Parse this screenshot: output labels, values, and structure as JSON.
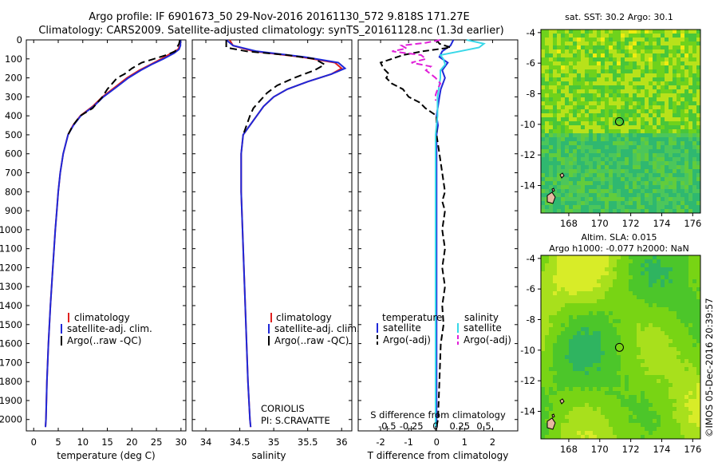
{
  "title_line1": "Argo profile: IF 6901673_50 29-Nov-2016 20161130_572 9.818S 171.27E",
  "title_line2": "Climatology: CARS2009. Satellite-adjusted climatology: synTS_20161128.nc (1.3d earlier)",
  "footer_stamp": "©IMOS 05-Dec-2016 20:39:57",
  "colors": {
    "clim": "#e0201e",
    "sat": "#1f28d8",
    "argo": "#000000",
    "sal_sat": "#38d8e8",
    "sal_argo": "#e020d8"
  },
  "depth_axis": {
    "ticks": [
      0,
      100,
      200,
      300,
      400,
      500,
      600,
      700,
      800,
      900,
      1000,
      1100,
      1200,
      1300,
      1400,
      1500,
      1600,
      1700,
      1800,
      1900,
      2000
    ],
    "ylim": [
      0,
      2060
    ]
  },
  "chart_data": [
    {
      "type": "line",
      "name": "temperature",
      "xlabel": "temperature (deg C)",
      "xlim": [
        -1.5,
        31
      ],
      "xticks": [
        0,
        5,
        10,
        15,
        20,
        25,
        30
      ],
      "legend": [
        "climatology",
        "satellite-adj. clim.",
        "Argo(..raw -QC)"
      ],
      "series": [
        {
          "name": "climatology",
          "depth": [
            0,
            30,
            50,
            70,
            100,
            130,
            160,
            200,
            250,
            300,
            350,
            400,
            450,
            500,
            600,
            700,
            800,
            900,
            1000,
            1200,
            1400,
            1600,
            1800,
            2000,
            2040
          ],
          "values": [
            29.8,
            29.8,
            29.4,
            28.0,
            26.0,
            23.8,
            21.5,
            19.0,
            16.5,
            14.0,
            12.0,
            9.5,
            8.0,
            7.0,
            6.0,
            5.4,
            5.0,
            4.7,
            4.4,
            3.9,
            3.4,
            3.0,
            2.7,
            2.5,
            2.4
          ]
        },
        {
          "name": "satellite-adj. clim.",
          "depth": [
            0,
            30,
            50,
            70,
            100,
            130,
            160,
            200,
            250,
            300,
            350,
            400,
            450,
            500,
            600,
            700,
            800,
            900,
            1000,
            1200,
            1400,
            1600,
            1800,
            2000,
            2040
          ],
          "values": [
            29.9,
            29.9,
            29.6,
            28.6,
            26.4,
            24.0,
            21.8,
            19.3,
            16.8,
            14.2,
            12.2,
            9.6,
            8.1,
            7.0,
            6.0,
            5.4,
            5.0,
            4.7,
            4.4,
            3.9,
            3.4,
            3.0,
            2.7,
            2.5,
            2.4
          ]
        },
        {
          "name": "Argo(..raw -QC)",
          "depth": [
            0,
            20,
            40,
            60,
            80,
            100,
            120,
            150,
            180,
            200,
            230,
            260,
            300,
            330,
            360,
            400,
            450,
            500
          ],
          "values": [
            29.8,
            29.6,
            29.2,
            28.8,
            27.0,
            24.5,
            22.0,
            20.0,
            18.5,
            17.0,
            16.0,
            15.0,
            14.0,
            13.0,
            12.0,
            9.5,
            8.0,
            7.0
          ]
        }
      ]
    },
    {
      "type": "line",
      "name": "salinity",
      "xlabel": "salinity",
      "xlim": [
        33.8,
        36.15
      ],
      "xticks": [
        34,
        34.5,
        35,
        35.5,
        36
      ],
      "legend": [
        "climatology",
        "satellite-adj. clim.",
        "Argo(..raw -QC)"
      ],
      "annotation_line1": "CORIOLIS",
      "annotation_line2": "PI: S.CRAVATTE",
      "series": [
        {
          "name": "climatology",
          "depth": [
            0,
            30,
            60,
            90,
            120,
            150,
            180,
            220,
            260,
            300,
            350,
            400,
            450,
            500,
            600,
            800,
            1000,
            1200,
            1400,
            1600,
            1800,
            2000,
            2040
          ],
          "values": [
            34.35,
            34.4,
            34.7,
            35.4,
            35.9,
            36.0,
            35.85,
            35.5,
            35.2,
            35.0,
            34.85,
            34.75,
            34.65,
            34.55,
            34.52,
            34.52,
            34.54,
            34.56,
            34.58,
            34.6,
            34.62,
            34.65,
            34.66
          ]
        },
        {
          "name": "satellite-adj. clim.",
          "depth": [
            0,
            30,
            60,
            90,
            120,
            150,
            180,
            220,
            260,
            300,
            350,
            400,
            450,
            500,
            600,
            800,
            1000,
            1200,
            1400,
            1600,
            1800,
            2000,
            2040
          ],
          "values": [
            34.3,
            34.4,
            34.75,
            35.45,
            35.95,
            36.05,
            35.85,
            35.5,
            35.2,
            35.0,
            34.85,
            34.75,
            34.65,
            34.55,
            34.52,
            34.52,
            34.54,
            34.56,
            34.58,
            34.6,
            34.62,
            34.65,
            34.66
          ]
        },
        {
          "name": "Argo(..raw -QC)",
          "depth": [
            0,
            40,
            60,
            80,
            100,
            130,
            160,
            200,
            240,
            280,
            320,
            360,
            400,
            450,
            500
          ],
          "values": [
            34.3,
            34.3,
            34.6,
            35.2,
            35.6,
            35.75,
            35.6,
            35.3,
            35.05,
            34.9,
            34.8,
            34.7,
            34.65,
            34.6,
            34.55
          ]
        }
      ]
    },
    {
      "type": "line",
      "name": "differences",
      "xlabel": "T difference from climatology",
      "xlim": [
        -2.8,
        2.9
      ],
      "xticks": [
        -2,
        -1,
        0,
        1,
        2
      ],
      "top_label": "S difference from climatology",
      "sticks": [
        -0.5,
        -0.25,
        0,
        0.25,
        0.5
      ],
      "stick_labels": [
        "-0.5",
        "-0.25",
        "0",
        "0.25",
        "0.5"
      ],
      "legend_t_title": "temperature",
      "legend_s_title": "salinity",
      "legend_items": [
        "satellite",
        "Argo(-adj)",
        "satellite",
        "Argo(-adj)"
      ],
      "series": [
        {
          "name": "T satellite",
          "depth": [
            0,
            30,
            60,
            90,
            120,
            160,
            200,
            260,
            300,
            350,
            400,
            450,
            500,
            600,
            800,
            1000,
            1500,
            2000,
            2040
          ],
          "values": [
            0.6,
            0.5,
            0.2,
            0.1,
            0.4,
            0.2,
            0.3,
            0.15,
            0.1,
            0.05,
            0.0,
            0.05,
            0.0,
            0.0,
            0.0,
            0.0,
            0.0,
            0.0,
            0.0
          ]
        },
        {
          "name": "T Argo(-adj)",
          "depth": [
            0,
            20,
            40,
            60,
            80,
            100,
            120,
            150,
            180,
            200,
            230,
            260,
            300,
            330,
            360,
            400,
            450,
            500,
            600,
            700,
            800,
            850,
            900,
            1000,
            1100,
            1200,
            1300,
            1400,
            1500,
            1600,
            1800,
            2000,
            2040
          ],
          "values": [
            0.0,
            0.1,
            0.5,
            -0.5,
            -1.2,
            -1.6,
            -2.0,
            -1.9,
            -1.7,
            -1.8,
            -1.6,
            -1.2,
            -1.0,
            -0.6,
            -0.4,
            0.0,
            0.0,
            0.0,
            0.1,
            0.2,
            0.3,
            0.2,
            0.3,
            0.2,
            0.3,
            0.2,
            0.3,
            0.2,
            0.25,
            0.15,
            0.1,
            0.05,
            0.0
          ]
        },
        {
          "name": "S satellite",
          "depth": [
            0,
            20,
            40,
            60,
            80,
            100,
            130,
            160,
            200,
            300,
            400,
            500,
            700,
            1000,
            1500,
            2000,
            2040
          ],
          "values": [
            0.32,
            0.5,
            0.45,
            0.25,
            0.05,
            0.08,
            0.1,
            0.05,
            0.05,
            0.02,
            0.02,
            0.0,
            0.0,
            0.0,
            0.0,
            0.0,
            0.0
          ]
        },
        {
          "name": "S Argo(-adj)",
          "depth": [
            0,
            15,
            30,
            45,
            60,
            80,
            100,
            120,
            140,
            160,
            180,
            200,
            230,
            260,
            290,
            320
          ],
          "values": [
            0.05,
            -0.1,
            -0.35,
            -0.3,
            -0.45,
            -0.15,
            -0.1,
            -0.25,
            -0.05,
            -0.1,
            -0.05,
            0.0,
            0.05,
            0.02,
            0.0,
            0.0
          ]
        }
      ]
    }
  ],
  "maps": [
    {
      "name": "sst-map",
      "title": "sat. SST: 30.2  Argo: 30.1",
      "xticks": [
        168,
        170,
        172,
        174,
        176
      ],
      "yticks": [
        -4,
        -6,
        -8,
        -10,
        -12,
        -14
      ],
      "xlim": [
        166.2,
        176.5
      ],
      "ylim": [
        -15.8,
        -3.8
      ],
      "argo_lon": 171.27,
      "argo_lat": -9.818
    },
    {
      "name": "sla-map",
      "title_line1": "Altim. SLA: 0.015",
      "title_line2": "Argo h1000: -0.077 h2000: NaN",
      "xticks": [
        168,
        170,
        172,
        174,
        176
      ],
      "yticks": [
        -4,
        -6,
        -8,
        -10,
        -12,
        -14
      ],
      "xlim": [
        166.2,
        176.5
      ],
      "ylim": [
        -15.8,
        -3.8
      ],
      "argo_lon": 171.27,
      "argo_lat": -9.818
    }
  ]
}
